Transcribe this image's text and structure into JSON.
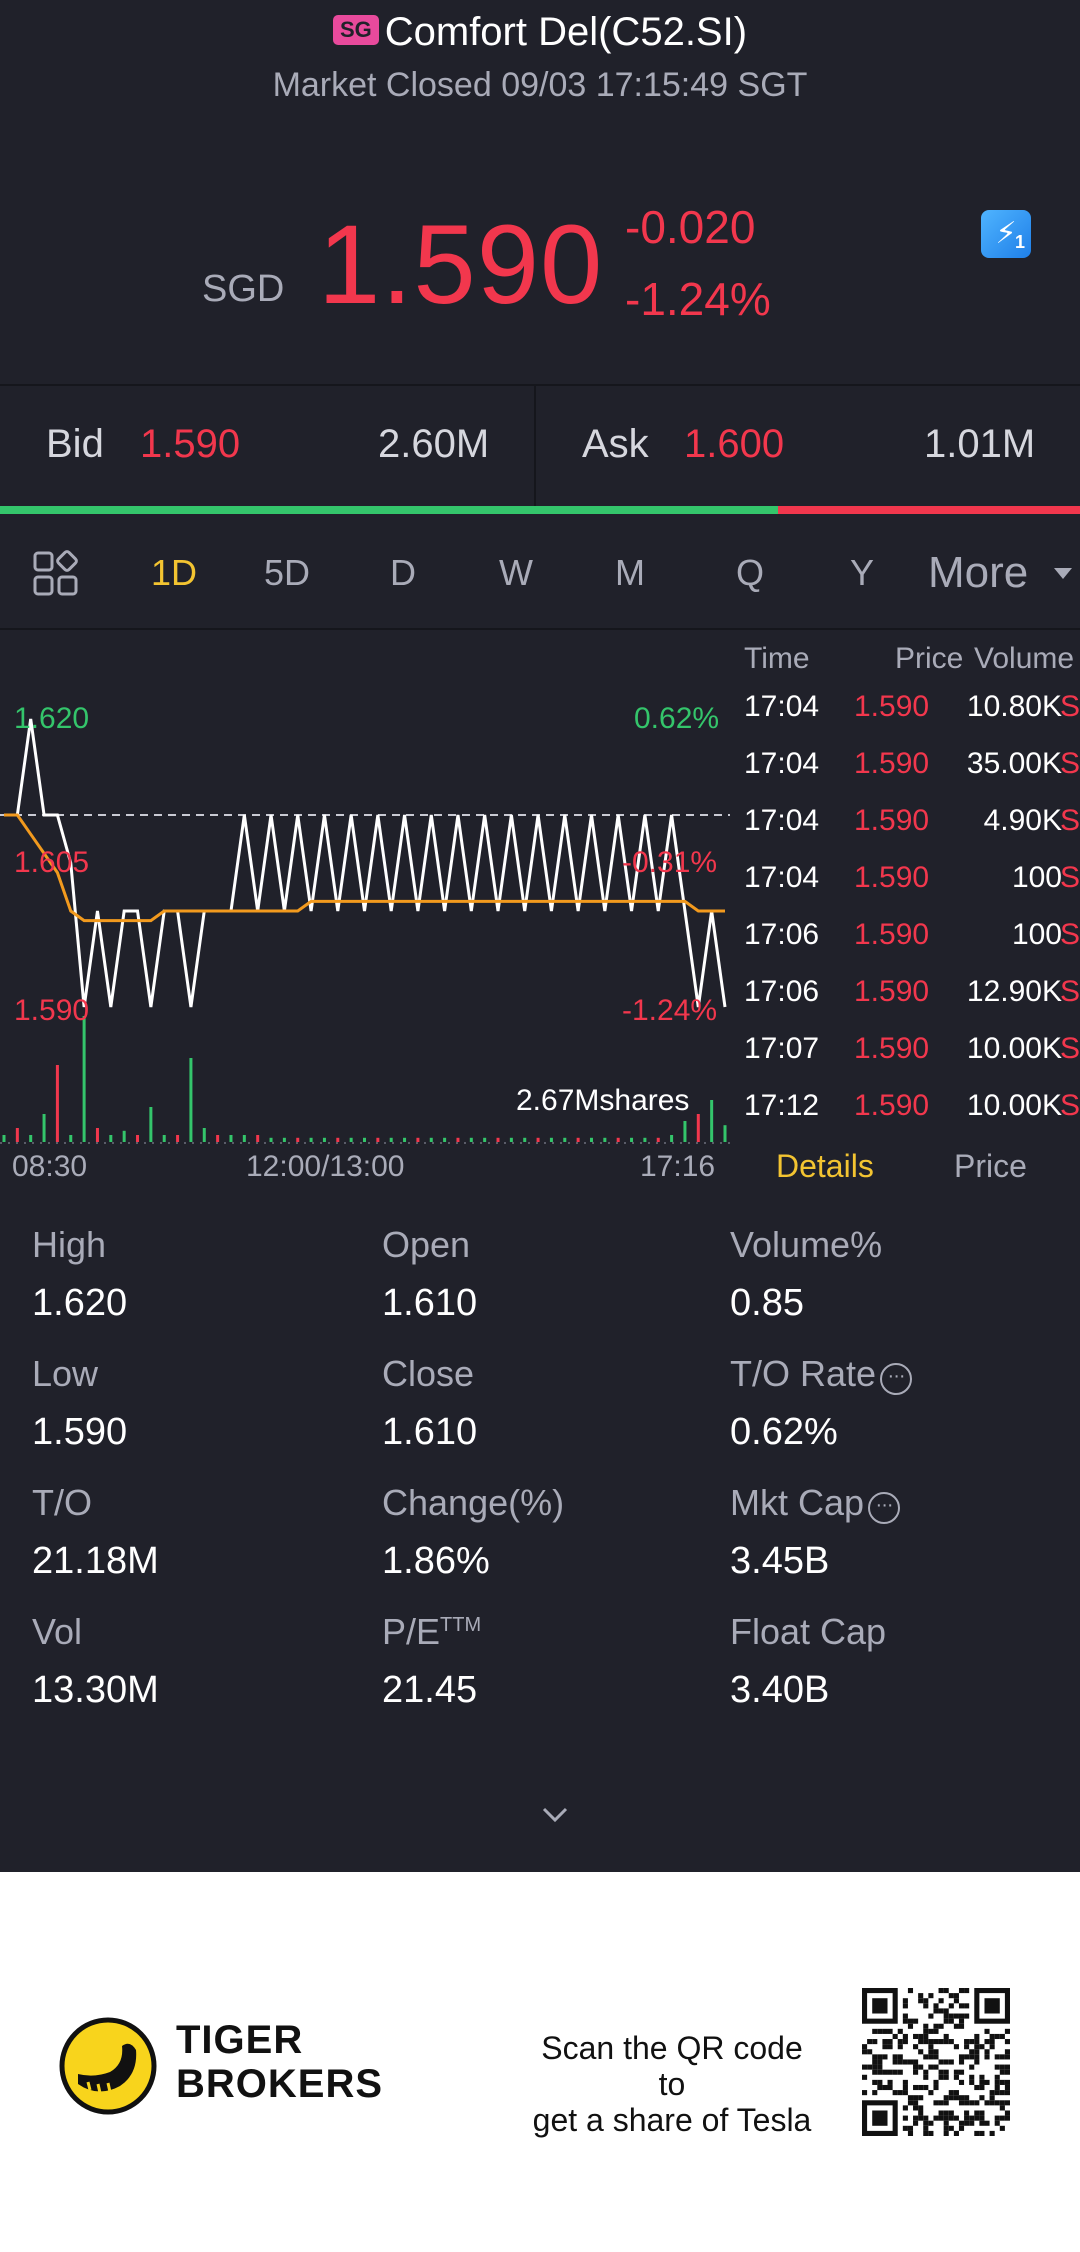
{
  "header": {
    "market_badge": "SG",
    "title": "Comfort Del(C52.SI)",
    "status": "Market Closed 09/03 17:15:49 SGT"
  },
  "quote": {
    "currency": "SGD",
    "price": "1.590",
    "change": "-0.020",
    "change_pct": "-1.24%",
    "flash_icon": "lightning-icon",
    "flash_badge": "1"
  },
  "bid_ask": {
    "bid_label": "Bid",
    "bid_price": "1.590",
    "bid_size": "2.60M",
    "ask_label": "Ask",
    "ask_price": "1.600",
    "ask_size": "1.01M",
    "bid_ratio": 0.72
  },
  "tabs": {
    "items": [
      "1D",
      "5D",
      "D",
      "W",
      "M",
      "Q",
      "Y"
    ],
    "active": "1D",
    "more": "More"
  },
  "chart": {
    "price_labels": [
      "1.620",
      "1.605",
      "1.590"
    ],
    "pct_labels": [
      "0.62%",
      "-0.31%",
      "-1.24%"
    ],
    "volume_label": "2.67Mshares",
    "time_labels": [
      "08:30",
      "12:00/13:00",
      "17:16"
    ]
  },
  "chart_data": {
    "type": "line",
    "ylim": [
      1.59,
      1.62
    ],
    "reference_close": 1.61,
    "series": [
      {
        "values": [
          1.61,
          1.61,
          1.62,
          1.61,
          1.61,
          1.605,
          1.59,
          1.6,
          1.59,
          1.6,
          1.6,
          1.59,
          1.6,
          1.6,
          1.59,
          1.6,
          1.6,
          1.6,
          1.61,
          1.6,
          1.61,
          1.6,
          1.61,
          1.6,
          1.61,
          1.6,
          1.61,
          1.6,
          1.61,
          1.6,
          1.61,
          1.6,
          1.61,
          1.6,
          1.61,
          1.6,
          1.61,
          1.6,
          1.61,
          1.6,
          1.61,
          1.6,
          1.61,
          1.6,
          1.61,
          1.6,
          1.61,
          1.6,
          1.61,
          1.6,
          1.61,
          1.6,
          1.59,
          1.6,
          1.59
        ]
      },
      {
        "values": [
          1.61,
          1.61,
          1.608,
          1.606,
          1.604,
          1.6,
          1.599,
          1.599,
          1.599,
          1.599,
          1.599,
          1.599,
          1.6,
          1.6,
          1.6,
          1.6,
          1.6,
          1.6,
          1.6,
          1.6,
          1.6,
          1.6,
          1.6,
          1.601,
          1.601,
          1.601,
          1.601,
          1.601,
          1.601,
          1.601,
          1.601,
          1.601,
          1.601,
          1.601,
          1.601,
          1.601,
          1.601,
          1.601,
          1.601,
          1.601,
          1.601,
          1.601,
          1.601,
          1.601,
          1.601,
          1.601,
          1.601,
          1.601,
          1.601,
          1.601,
          1.601,
          1.601,
          1.6,
          1.6,
          1.6
        ]
      }
    ],
    "volumes": [
      0.05,
      0.1,
      0.05,
      0.2,
      0.55,
      0.05,
      0.9,
      0.1,
      0.05,
      0.08,
      0.05,
      0.25,
      0.05,
      0.05,
      0.6,
      0.1,
      0.05,
      0.05,
      0.05,
      0.05,
      0.03,
      0.03,
      0.03,
      0.03,
      0.03,
      0.03,
      0.03,
      0.03,
      0.03,
      0.03,
      0.03,
      0.03,
      0.03,
      0.03,
      0.03,
      0.03,
      0.03,
      0.03,
      0.03,
      0.03,
      0.03,
      0.03,
      0.03,
      0.03,
      0.03,
      0.03,
      0.03,
      0.03,
      0.03,
      0.03,
      0.05,
      0.15,
      0.2,
      0.3,
      0.12
    ],
    "volume_colors": [
      "#34c56b",
      "#f2374d"
    ]
  },
  "ticks": {
    "headers": {
      "time": "Time",
      "price": "Price",
      "volume": "Volume"
    },
    "rows": [
      {
        "time": "17:04",
        "price": "1.590",
        "volume": "10.80K",
        "side": "S"
      },
      {
        "time": "17:04",
        "price": "1.590",
        "volume": "35.00K",
        "side": "S"
      },
      {
        "time": "17:04",
        "price": "1.590",
        "volume": "4.90K",
        "side": "S"
      },
      {
        "time": "17:04",
        "price": "1.590",
        "volume": "100",
        "side": "S"
      },
      {
        "time": "17:06",
        "price": "1.590",
        "volume": "100",
        "side": "S"
      },
      {
        "time": "17:06",
        "price": "1.590",
        "volume": "12.90K",
        "side": "S"
      },
      {
        "time": "17:07",
        "price": "1.590",
        "volume": "10.00K",
        "side": "S"
      },
      {
        "time": "17:12",
        "price": "1.590",
        "volume": "10.00K",
        "side": "S"
      }
    ],
    "tab_details": "Details",
    "tab_price": "Price"
  },
  "stats": [
    {
      "label": "High",
      "value": "1.620"
    },
    {
      "label": "Open",
      "value": "1.610"
    },
    {
      "label": "Volume%",
      "value": "0.85"
    },
    {
      "label": "Low",
      "value": "1.590"
    },
    {
      "label": "Close",
      "value": "1.610"
    },
    {
      "label": "T/O Rate",
      "value": "0.62%"
    },
    {
      "label": "T/O",
      "value": "21.18M"
    },
    {
      "label": "Change(%)",
      "value": "1.86%"
    },
    {
      "label": "Mkt Cap",
      "value": "3.45B"
    },
    {
      "label": "Vol",
      "value": "13.30M"
    },
    {
      "label": "P/E",
      "label_sup": "TTM",
      "value": "21.45"
    },
    {
      "label": "Float Cap",
      "value": "3.40B"
    }
  ],
  "footer": {
    "brand_line1": "TIGER",
    "brand_line2": "BROKERS",
    "promo_line1": "Scan the QR code to",
    "promo_line2": "get a share of Tesla"
  },
  "colors": {
    "background": "#20212a",
    "up": "#34c56b",
    "down": "#f2374d",
    "accent": "#f3c431",
    "average_line": "#f29a1e"
  }
}
